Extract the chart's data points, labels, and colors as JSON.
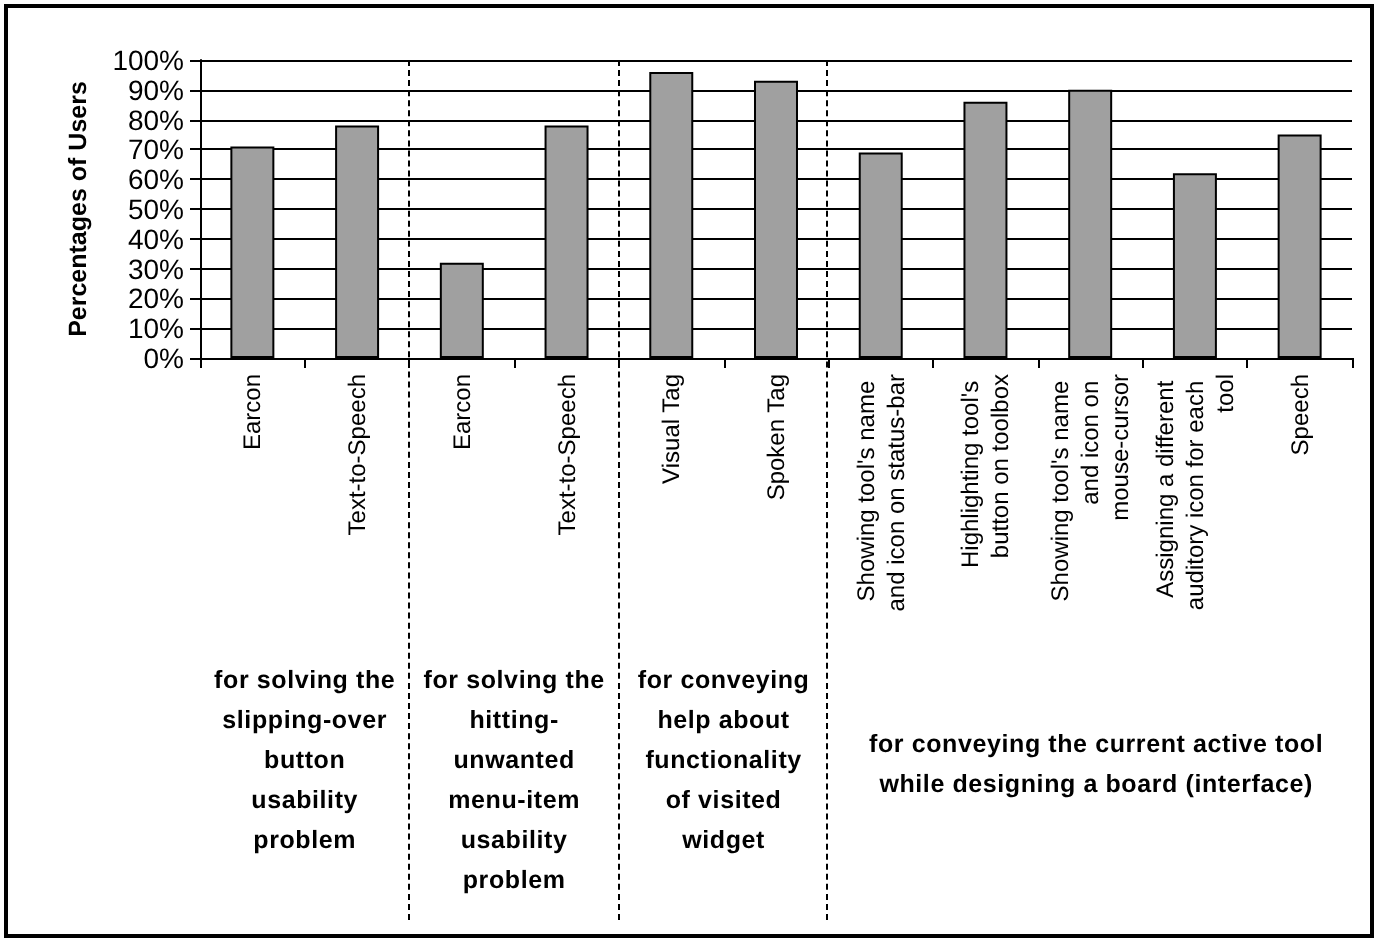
{
  "chart_data": {
    "type": "bar",
    "ylabel": "Percentages of Users",
    "categories": [
      "Earcon",
      "Text-to-Speech",
      "Earcon",
      "Text-to-Speech",
      "Visual Tag",
      "Spoken Tag",
      "Showing tool's name and icon on status-bar",
      "Highlighting tool's button on toolbox",
      "Showing tool's name and icon on mouse-cursor",
      "Assigning a different auditory icon for each tool",
      "Speech"
    ],
    "values": [
      71,
      78,
      32,
      78,
      96,
      93,
      69,
      86,
      90,
      62,
      75
    ],
    "color": "#a0a0a0",
    "ylim": [
      0,
      100
    ],
    "yticks": [
      {
        "value": 0,
        "label": "0%"
      },
      {
        "value": 10,
        "label": "10%"
      },
      {
        "value": 20,
        "label": "20%"
      },
      {
        "value": 30,
        "label": "30%"
      },
      {
        "value": 40,
        "label": "40%"
      },
      {
        "value": 50,
        "label": "50%"
      },
      {
        "value": 60,
        "label": "60%"
      },
      {
        "value": 70,
        "label": "70%"
      },
      {
        "value": 80,
        "label": "80%"
      },
      {
        "value": 90,
        "label": "90%"
      },
      {
        "value": 100,
        "label": "100%"
      }
    ],
    "grid": "y",
    "annotations": [
      "for solving the slipping-over button usability problem",
      "for solving the hitting-unwanted menu-item usability problem",
      "for conveying help about functionality of visited widget",
      "for conveying the current active tool while designing a board (interface)"
    ]
  }
}
